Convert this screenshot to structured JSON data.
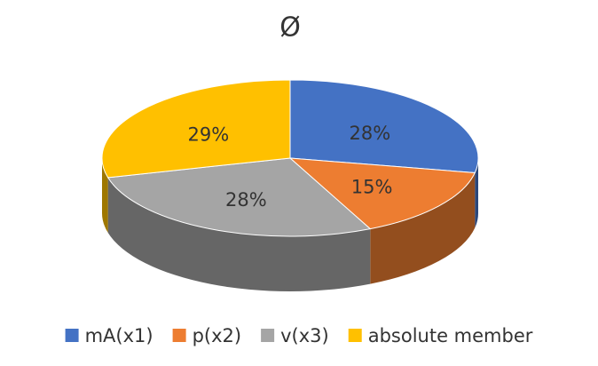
{
  "chart_data": {
    "type": "pie",
    "title": "Ø",
    "categories": [
      "mA(x1)",
      "p(x2)",
      "v(x3)",
      "absolute member"
    ],
    "values": [
      28,
      15,
      28,
      29
    ],
    "value_labels": [
      "28%",
      "15%",
      "28%",
      "29%"
    ],
    "colors": [
      "#4472c4",
      "#ed7d31",
      "#a5a5a5",
      "#ffc000"
    ],
    "legend": "bottom"
  }
}
